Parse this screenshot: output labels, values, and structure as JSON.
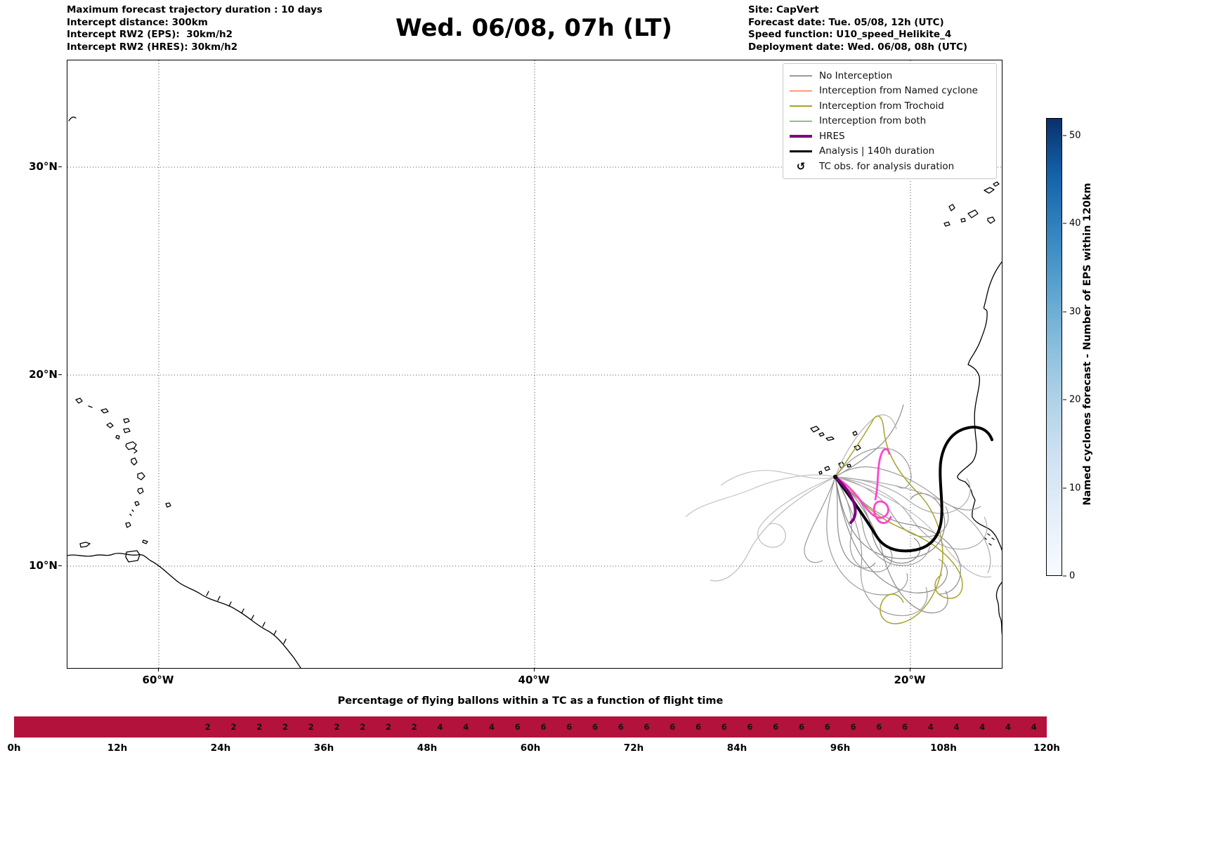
{
  "header": {
    "left_lines": [
      "Maximum forecast trajectory duration : 10 days",
      "Intercept distance: 300km",
      "Intercept RW2 (EPS):  30km/h2",
      "Intercept RW2 (HRES): 30km/h2"
    ],
    "title": "Wed. 06/08, 07h (LT)",
    "right_lines": [
      "Site: CapVert",
      "Forecast date: Tue. 05/08, 12h (UTC)",
      "Speed function: U10_speed_Helikite_4",
      "Deployment date: Wed. 06/08, 08h (UTC)"
    ]
  },
  "map": {
    "y_ticks": [
      "30°N",
      "20°N",
      "10°N"
    ],
    "x_ticks": [
      "60°W",
      "40°W",
      "20°W"
    ],
    "legend": {
      "items": [
        {
          "label": "No Interception",
          "type": "line",
          "color": "#9a9a9a",
          "width": 1.5
        },
        {
          "label": "Interception from Named cyclone",
          "type": "line",
          "color": "#ff4500",
          "width": 1.5
        },
        {
          "label": "Interception from Trochoid",
          "type": "line",
          "color": "#a8a32a",
          "width": 1.5
        },
        {
          "label": "Interception from both",
          "type": "line",
          "color": "#2e8b2e",
          "width": 1.5
        },
        {
          "label": "HRES",
          "type": "line",
          "color": "#800080",
          "width": 3.5
        },
        {
          "label": "Analysis | 140h duration",
          "type": "line",
          "color": "#000000",
          "width": 3.5
        },
        {
          "label": "TC obs. for analysis duration",
          "type": "marker",
          "symbol": "↺"
        }
      ]
    },
    "series_colors": {
      "no_interception": "#a0a0a0",
      "named_cyclone": "#ff4500",
      "trochoid": "#a8a32a",
      "both": "#2e8b2e",
      "hres": "#800080",
      "analysis": "#000000",
      "tc_obs_track": "#ff46d0"
    }
  },
  "colorbar": {
    "label": "Named cyclones forecast - Number of EPS within 120km",
    "ticks": [
      0,
      10,
      20,
      30,
      40,
      50
    ],
    "vmin": 0,
    "vmax": 52,
    "color_low": "#f7fbff",
    "color_high": "#08306b"
  },
  "chart_data": {
    "type": "heatmap",
    "title": "Percentage of flying ballons within a TC as a function of flight time",
    "x_unit": "hours",
    "x_range": [
      0,
      120
    ],
    "cell_hours": 3,
    "x_ticks": [
      "0h",
      "12h",
      "24h",
      "36h",
      "48h",
      "60h",
      "72h",
      "84h",
      "96h",
      "108h",
      "120h"
    ],
    "values": [
      null,
      null,
      null,
      null,
      null,
      null,
      null,
      2,
      2,
      2,
      2,
      2,
      2,
      2,
      2,
      2,
      4,
      4,
      4,
      6,
      6,
      6,
      6,
      6,
      6,
      6,
      6,
      6,
      6,
      6,
      6,
      6,
      6,
      6,
      6,
      4,
      4,
      4,
      4,
      4
    ],
    "bar_color": "#b2123c",
    "label_color": "#121212",
    "legend_position": "none",
    "grid": false
  }
}
